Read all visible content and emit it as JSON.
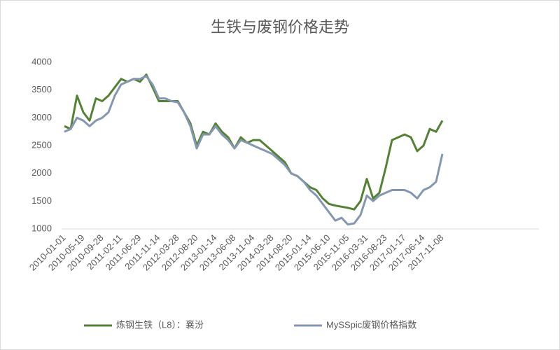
{
  "chart_data": {
    "type": "line",
    "title": "生铁与废钢价格走势",
    "categories": [
      "2010-01-01",
      null,
      null,
      "2010-05-19",
      null,
      null,
      "2010-09-28",
      null,
      null,
      "2011-02-11",
      null,
      null,
      "2011-06-29",
      null,
      null,
      "2011-11-14",
      null,
      null,
      "2012-03-28",
      null,
      null,
      "2012-08-20",
      null,
      null,
      "2013-01-14",
      null,
      null,
      "2013-06-08",
      null,
      null,
      "2013-11-04",
      null,
      null,
      "2014-03-28",
      null,
      null,
      "2014-08-20",
      null,
      null,
      "2015-01-14",
      null,
      null,
      "2015-06-10",
      null,
      null,
      "2015-11-05",
      null,
      null,
      "2016-03-31",
      null,
      null,
      "2016-08-23",
      null,
      null,
      "2017-01-17",
      null,
      null,
      "2017-06-14",
      null,
      null,
      "2017-11-08"
    ],
    "series": [
      {
        "name": "炼钢生铁（L8）：襄汾",
        "color": "#548235",
        "values": [
          2850,
          2800,
          3400,
          3100,
          2950,
          3350,
          3300,
          3400,
          3550,
          3700,
          3650,
          3700,
          3650,
          3780,
          3550,
          3300,
          3300,
          3300,
          3300,
          3100,
          2900,
          2500,
          2750,
          2700,
          2900,
          2750,
          2650,
          2450,
          2650,
          2550,
          2600,
          2600,
          2500,
          2400,
          2300,
          2200,
          2000,
          1950,
          1850,
          1750,
          1700,
          1550,
          1450,
          1420,
          1400,
          1380,
          1350,
          1500,
          1900,
          1550,
          1650,
          2100,
          2600,
          2650,
          2700,
          2650,
          2400,
          2500,
          2800,
          2750,
          2950
        ]
      },
      {
        "name": "MySSpic废钢价格指数",
        "color": "#8497b0",
        "values": [
          2750,
          2800,
          3000,
          2950,
          2850,
          2950,
          3000,
          3100,
          3400,
          3600,
          3650,
          3700,
          3700,
          3750,
          3600,
          3350,
          3350,
          3300,
          3280,
          3100,
          2850,
          2450,
          2700,
          2700,
          2850,
          2700,
          2600,
          2450,
          2600,
          2550,
          2500,
          2450,
          2400,
          2350,
          2250,
          2150,
          2000,
          1950,
          1850,
          1700,
          1600,
          1450,
          1300,
          1150,
          1200,
          1080,
          1100,
          1250,
          1600,
          1500,
          1600,
          1650,
          1700,
          1700,
          1700,
          1650,
          1550,
          1700,
          1750,
          1850,
          2350
        ]
      }
    ],
    "ylim": [
      1000,
      4000
    ],
    "yticks": [
      1000,
      1500,
      2000,
      2500,
      3000,
      3500,
      4000
    ],
    "grid": false,
    "legend": "bottom"
  }
}
